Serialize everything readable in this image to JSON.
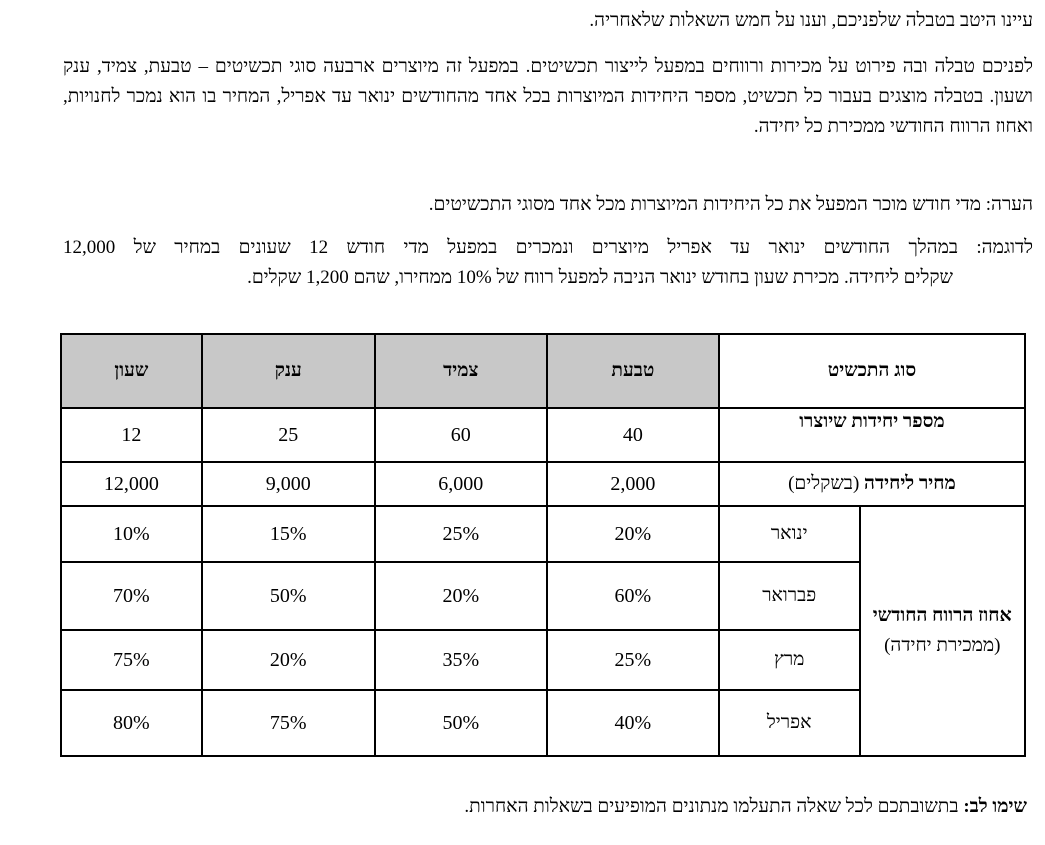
{
  "intro": "עיינו היטב בטבלה שלפניכם, וענו על חמש השאלות שלאחריה.",
  "description": "לפניכם טבלה ובה פירוט על מכירות ורווחים במפעל לייצור תכשיטים. במפעל זה מיוצרים ארבעה סוגי תכשיטים – טבעת, צמיד, ענק ושעון.  בטבלה מוצגים בעבור כל תכשיט, מספר היחידות המיוצרות בכל אחד מהחודשים ינואר עד אפריל, המחיר בו הוא נמכר לחנויות, ואחוז הרווח החודשי ממכירת כל יחידה.",
  "note": "הערה: מדי חודש מוכר המפעל את כל היחידות המיוצרות מכל אחד מסוגי התכשיטים.",
  "example_line1": "לדוגמה: במהלך החודשים ינואר עד אפריל מיוצרים ונמכרים במפעל מדי חודש 12 שעונים במחיר של 12,000",
  "example_line2": "שקלים ליחידה.  מכירת שעון בחודש ינואר הניבה למפעל רווח של 10% ממחירו, שהם 1,200 שקלים.",
  "table": {
    "header_type": "סוג התכשיט",
    "columns": [
      "טבעת",
      "צמיד",
      "ענק",
      "שעון"
    ],
    "units_label": "מספר יחידות שיוצרו",
    "units": [
      "40",
      "60",
      "25",
      "12"
    ],
    "price_label_bold": "מחיר ליחידה",
    "price_label_normal": "(בשקלים)",
    "prices": [
      "2,000",
      "6,000",
      "9,000",
      "12,000"
    ],
    "profit_label_bold": "אחוז הרווח החודשי",
    "profit_label_normal": "(ממכירת יחידה)",
    "months": [
      {
        "name": "ינואר",
        "values": [
          "20%",
          "25%",
          "15%",
          "10%"
        ]
      },
      {
        "name": "פברואר",
        "values": [
          "60%",
          "20%",
          "50%",
          "70%"
        ]
      },
      {
        "name": "מרץ",
        "values": [
          "25%",
          "35%",
          "20%",
          "75%"
        ]
      },
      {
        "name": "אפריל",
        "values": [
          "40%",
          "50%",
          "75%",
          "80%"
        ]
      }
    ]
  },
  "footer_bold": "שימו לב:",
  "footer_text": " בתשובתכם לכל שאלה התעלמו מנתונים המופיעים בשאלות האחרות."
}
